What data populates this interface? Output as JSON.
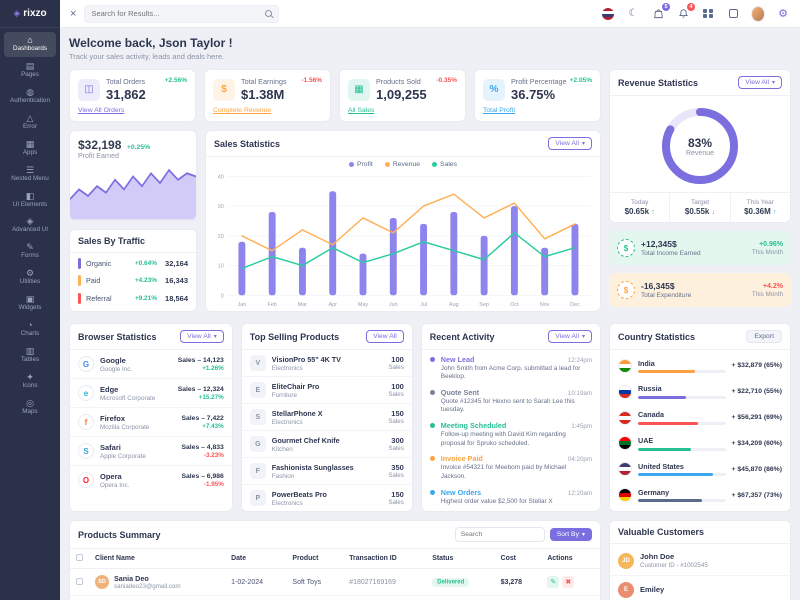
{
  "app": {
    "name": "rixzo"
  },
  "header": {
    "search_placeholder": "Search for Results...",
    "cart_badge": "5",
    "alerts_badge": "4"
  },
  "sidebar": {
    "items": [
      {
        "label": "Dashboards",
        "glyph": "⌂",
        "active": true
      },
      {
        "label": "Pages",
        "glyph": "▤"
      },
      {
        "label": "Authentication",
        "glyph": "◍"
      },
      {
        "label": "Error",
        "glyph": "△"
      },
      {
        "label": "Apps",
        "glyph": "▦"
      },
      {
        "label": "Nested Menu",
        "glyph": "☰"
      },
      {
        "label": "UI Elements",
        "glyph": "◧"
      },
      {
        "label": "Advanced UI",
        "glyph": "◈"
      },
      {
        "label": "Forms",
        "glyph": "✎"
      },
      {
        "label": "Utilities",
        "glyph": "⚙"
      },
      {
        "label": "Widgets",
        "glyph": "▣"
      },
      {
        "label": "Charts",
        "glyph": "◔"
      },
      {
        "label": "Tables",
        "glyph": "▥"
      },
      {
        "label": "Icons",
        "glyph": "✦"
      },
      {
        "label": "Maps",
        "glyph": "◎"
      }
    ]
  },
  "welcome": {
    "title": "Welcome back, Json Taylor !",
    "subtitle": "Track your sales activity, leads and deals here."
  },
  "stat_cards": [
    {
      "label": "Total Orders",
      "value": "31,862",
      "badge": "+2.56%",
      "trend": "up",
      "link": "View All Orders",
      "accent": "#7b6fe0",
      "glyph": "◫"
    },
    {
      "label": "Total Earnings",
      "value": "$1.38M",
      "badge": "-1.56%",
      "trend": "down",
      "link": "Complete Revenue",
      "accent": "#ffa440",
      "glyph": "$"
    },
    {
      "label": "Products Sold",
      "value": "1,09,255",
      "badge": "-0.35%",
      "trend": "down",
      "link": "All Sales",
      "accent": "#26bf94",
      "glyph": "▦"
    },
    {
      "label": "Profit Percentage",
      "value": "36.75%",
      "badge": "+2.05%",
      "trend": "up",
      "link": "Total Profit",
      "accent": "#3aa7f0",
      "glyph": "%"
    }
  ],
  "profit_card": {
    "value": "$32,198",
    "delta": "+0.25%",
    "label": "Profit Earned"
  },
  "sales_by_traffic": {
    "title": "Sales By Traffic",
    "items": [
      {
        "label": "Organic",
        "delta": "+0.64%",
        "value": "32,164",
        "color": "#7b6fe0"
      },
      {
        "label": "Paid",
        "delta": "+4.23%",
        "value": "16,343",
        "color": "#ffb054"
      },
      {
        "label": "Referral",
        "delta": "+9.21%",
        "value": "18,564",
        "color": "#fb5454"
      }
    ]
  },
  "sales_statistics": {
    "title": "Sales Statistics",
    "view_all": "View All"
  },
  "revenue_statistics": {
    "title": "Revenue Statistics",
    "view_all": "View All",
    "substats": [
      {
        "label": "Today",
        "value": "$0.65k",
        "dir": "↑",
        "tone": "success"
      },
      {
        "label": "Target",
        "value": "$0.55k",
        "dir": "↓",
        "tone": "danger"
      },
      {
        "label": "This Year",
        "value": "$0.36M",
        "dir": "↑",
        "tone": "info"
      }
    ]
  },
  "income_banners": [
    {
      "value": "+12,345$",
      "label": "Total Income Earned",
      "delta": "+0.96%",
      "period": "This Month",
      "tone": "success",
      "glyph": "$"
    },
    {
      "value": "-16,345$",
      "label": "Total Expenditure",
      "delta": "+4.2%",
      "period": "This Month",
      "tone": "warning",
      "glyph": "$"
    }
  ],
  "browser_statistics": {
    "title": "Browser Statistics",
    "view_all": "View All",
    "items": [
      {
        "name": "Google",
        "company": "Google Inc.",
        "sales": "Sales – 14,123",
        "delta": "+1.26%",
        "trend": "up",
        "letter": "G",
        "color": "#4285f4"
      },
      {
        "name": "Edge",
        "company": "Microsoft Corporate",
        "sales": "Sales – 12,324",
        "delta": "+15.27%",
        "trend": "up",
        "letter": "e",
        "color": "#20b8d2"
      },
      {
        "name": "Firefox",
        "company": "Mozilla Corporate",
        "sales": "Sales – 7,422",
        "delta": "+7.43%",
        "trend": "up",
        "letter": "f",
        "color": "#ff7139"
      },
      {
        "name": "Safari",
        "company": "Apple Corporate",
        "sales": "Sales – 4,833",
        "delta": "-3.23%",
        "trend": "down",
        "letter": "S",
        "color": "#38a1db"
      },
      {
        "name": "Opera",
        "company": "Opera Inc.",
        "sales": "Sales – 6,986",
        "delta": "-1.95%",
        "trend": "down",
        "letter": "O",
        "color": "#ff1b2d"
      }
    ]
  },
  "top_selling_products": {
    "title": "Top Selling Products",
    "view_all": "View All",
    "items": [
      {
        "name": "VisionPro 55\" 4K TV",
        "category": "Electronics",
        "count": "100",
        "unit": "Sales"
      },
      {
        "name": "EliteChair Pro",
        "category": "Furniture",
        "count": "100",
        "unit": "Sales"
      },
      {
        "name": "StellarPhone X",
        "category": "Electronics",
        "count": "150",
        "unit": "Sales"
      },
      {
        "name": "Gourmet Chef Knife",
        "category": "Kitchen",
        "count": "300",
        "unit": "Sales"
      },
      {
        "name": "Fashionista Sunglasses",
        "category": "Fashion",
        "count": "350",
        "unit": "Sales"
      },
      {
        "name": "PowerBeats Pro",
        "category": "Electronics",
        "count": "150",
        "unit": "Sales"
      }
    ]
  },
  "recent_activity": {
    "title": "Recent Activity",
    "view_all": "View All",
    "items": [
      {
        "title": "New Lead",
        "time": "12:24pm",
        "tone": "primary",
        "text": "John Smith from Acme Corp. submitted a lead for Beeklop."
      },
      {
        "title": "Quote Sent",
        "time": "10:19am",
        "tone": "secondary",
        "text": "Quote #12345 for Hexno sent to Sarah Lee this tuesday."
      },
      {
        "title": "Meeting Scheduled",
        "time": "1:45pm",
        "tone": "success",
        "text": "Follow-up meeting with David Kim regarding proposal for Spruko scheduled."
      },
      {
        "title": "Invoice Paid",
        "time": "04:20pm",
        "tone": "warning",
        "text": "Invoice #54321 for Meebom paid by Michael Jackson."
      },
      {
        "title": "New Orders",
        "time": "12:20am",
        "tone": "info",
        "text": "Highest order value $2,500 for Stellar X"
      }
    ]
  },
  "country_statistics": {
    "title": "Country Statistics",
    "export_label": "Export",
    "items": [
      {
        "country": "India",
        "value": "+ $32,879 (65%)",
        "percent": 65,
        "bar": "#ff9f43",
        "flag": [
          "#ff9933",
          "#ffffff",
          "#138808"
        ]
      },
      {
        "country": "Russia",
        "value": "+ $22,710 (55%)",
        "percent": 55,
        "bar": "#7b6fe0",
        "flag": [
          "#ffffff",
          "#0039a6",
          "#d52b1e"
        ]
      },
      {
        "country": "Canada",
        "value": "+ $56,291 (69%)",
        "percent": 69,
        "bar": "#fb5454",
        "flag": [
          "#d52b1e",
          "#ffffff",
          "#d52b1e"
        ]
      },
      {
        "country": "UAE",
        "value": "+ $34,209 (60%)",
        "percent": 60,
        "bar": "#26bf94",
        "flag": [
          "#ff0000",
          "#00732f",
          "#000000"
        ]
      },
      {
        "country": "United States",
        "value": "+ $45,870 (86%)",
        "percent": 86,
        "bar": "#3aa7f0",
        "flag": [
          "#3c3b6e",
          "#ffffff",
          "#b22234"
        ]
      },
      {
        "country": "Germany",
        "value": "+ $67,357 (73%)",
        "percent": 73,
        "bar": "#5b6b8c",
        "flag": [
          "#000000",
          "#dd0000",
          "#ffce00"
        ]
      }
    ]
  },
  "products_summary": {
    "title": "Products Summary",
    "search_placeholder": "Search",
    "sort_label": "Sort By",
    "columns": [
      "Client Name",
      "Date",
      "Product",
      "Transaction ID",
      "Status",
      "Cost",
      "Actions"
    ],
    "rows": [
      {
        "name": "Sania Deo",
        "email": "saniadeo23@gmail.com",
        "date": "1-02-2024",
        "product": "Soft Toys",
        "txn": "#18027169169",
        "status": "Delivered",
        "tone": "success",
        "cost": "$3,278",
        "initials": "SD",
        "color": "#f0b27a"
      }
    ]
  },
  "valuable_customers": {
    "title": "Valuable Customers",
    "items": [
      {
        "name": "John Doe",
        "sub": "Customer ID - #1002545",
        "initials": "JD",
        "color": "#f5b759"
      },
      {
        "name": "Emiley",
        "sub": "",
        "initials": "E",
        "color": "#e98f6f"
      }
    ]
  },
  "chart_data": [
    {
      "id": "profit_spark",
      "type": "area",
      "title": "Profit Earned",
      "values": [
        5,
        8,
        6,
        9,
        7,
        11,
        8,
        12,
        9,
        13,
        10,
        14,
        11,
        13,
        12
      ],
      "color": "#7b6fe0",
      "fill": "#cdc5f6"
    },
    {
      "id": "sales_statistics",
      "type": "bar",
      "title": "Sales Statistics",
      "categories": [
        "Jan",
        "Feb",
        "Mar",
        "Apr",
        "May",
        "Jun",
        "Jul",
        "Aug",
        "Sep",
        "Oct",
        "Nov",
        "Dec"
      ],
      "series": [
        {
          "name": "Profit",
          "type": "bar",
          "color": "#8e84ee",
          "values": [
            18,
            28,
            16,
            35,
            14,
            26,
            24,
            28,
            20,
            30,
            16,
            24
          ]
        },
        {
          "name": "Revenue",
          "type": "line",
          "color": "#ffb054",
          "values": [
            20,
            15,
            22,
            17,
            26,
            21,
            30,
            34,
            26,
            31,
            19,
            24
          ]
        },
        {
          "name": "Sales",
          "type": "line",
          "color": "#29cb9f",
          "values": [
            9,
            13,
            10,
            16,
            11,
            14,
            18,
            15,
            12,
            21,
            13,
            16
          ]
        }
      ],
      "ylim": [
        0,
        40
      ],
      "yticks": [
        0,
        10,
        20,
        30,
        40
      ],
      "grid": true,
      "legend_position": "top"
    },
    {
      "id": "revenue_gauge",
      "type": "donut",
      "percent": 83,
      "percent_label": "83%",
      "label": "Revenue",
      "color": "#7b6fe0",
      "track": "#e9e5fb"
    }
  ]
}
